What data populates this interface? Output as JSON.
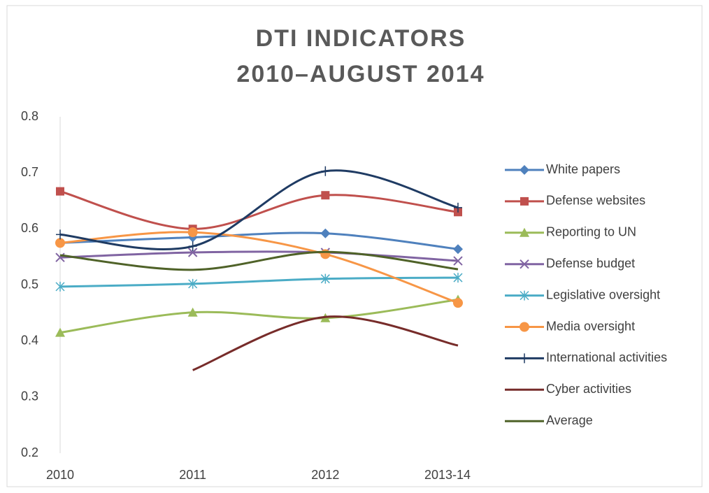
{
  "chart_data": {
    "type": "line",
    "title": [
      "DTI INDICATORS",
      "2010–AUGUST 2014"
    ],
    "categories": [
      "2010",
      "2011",
      "2012",
      "2013-14"
    ],
    "ylim": [
      0.2,
      0.8
    ],
    "yticks": [
      0.2,
      0.3,
      0.4,
      0.5,
      0.6,
      0.7,
      0.8
    ],
    "grid": false,
    "legend": "right",
    "smooth": true,
    "series": [
      {
        "name": "White papers",
        "color": "#4f81bd",
        "marker": "diamond",
        "values": [
          0.575,
          0.585,
          0.592,
          0.564
        ]
      },
      {
        "name": "Defense websites",
        "color": "#c0504d",
        "marker": "square",
        "values": [
          0.667,
          0.6,
          0.66,
          0.63
        ]
      },
      {
        "name": "Reporting to UN",
        "color": "#9bbb59",
        "marker": "triangle",
        "values": [
          0.415,
          0.451,
          0.441,
          0.474
        ]
      },
      {
        "name": "Defense budget",
        "color": "#8064a2",
        "marker": "x",
        "values": [
          0.549,
          0.558,
          0.558,
          0.543
        ]
      },
      {
        "name": "Legislative oversight",
        "color": "#4bacc6",
        "marker": "star",
        "values": [
          0.497,
          0.502,
          0.511,
          0.513
        ]
      },
      {
        "name": "Media oversight",
        "color": "#f79646",
        "marker": "circle",
        "values": [
          0.575,
          0.594,
          0.555,
          0.468
        ]
      },
      {
        "name": "International activities",
        "color": "#1f3b63",
        "marker": "plus",
        "values": [
          0.59,
          0.569,
          0.703,
          0.638
        ]
      },
      {
        "name": "Cyber activities",
        "color": "#772c2a",
        "marker": "none",
        "values": [
          null,
          0.348,
          0.443,
          0.392
        ]
      },
      {
        "name": "Average",
        "color": "#4f6228",
        "marker": "none",
        "values": [
          0.553,
          0.527,
          0.559,
          0.528
        ]
      }
    ]
  }
}
